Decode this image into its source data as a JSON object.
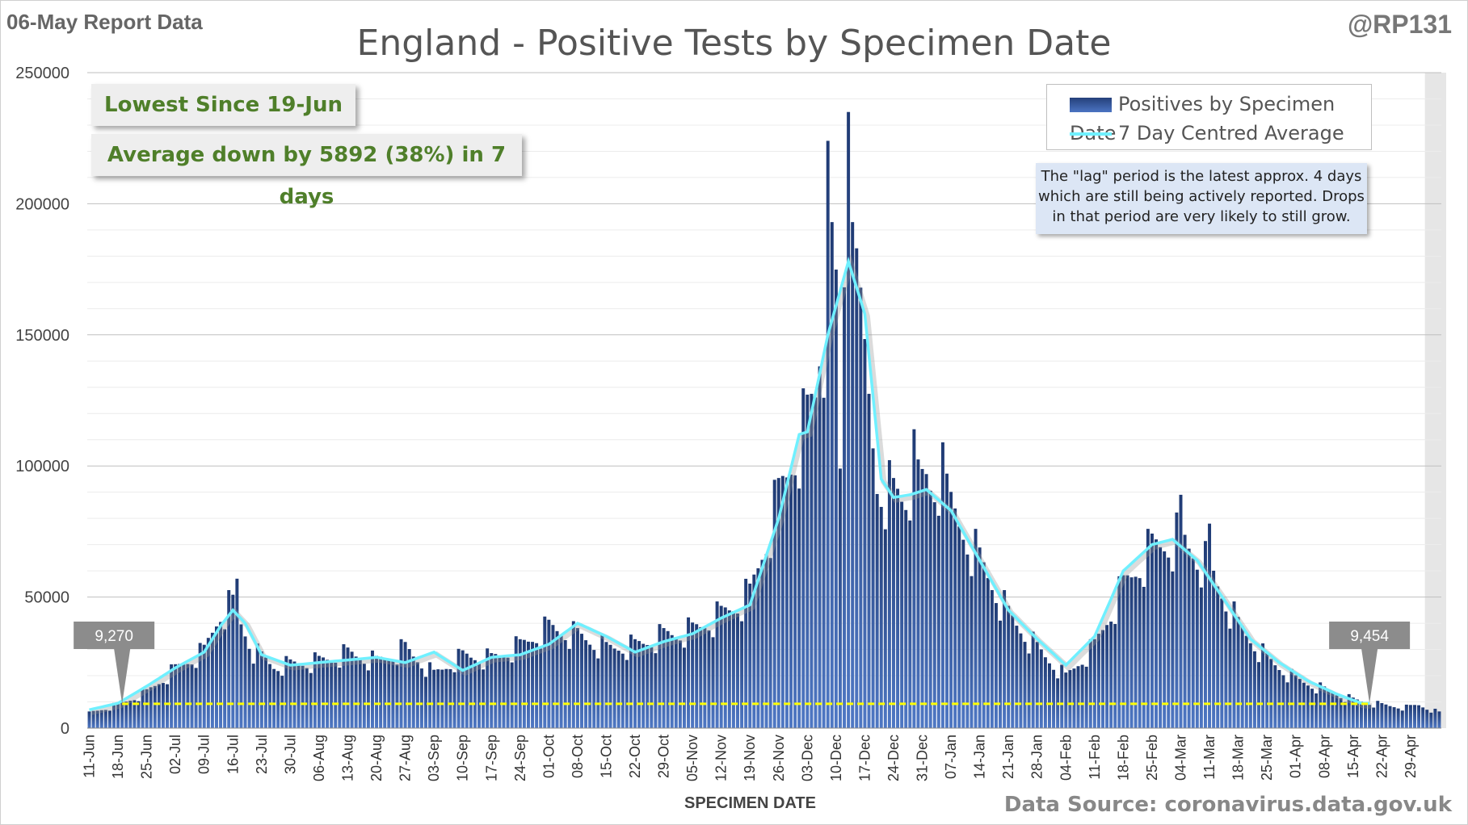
{
  "report_label": "06-May Report Data",
  "handle": "@RP131",
  "title": "England - Positive Tests by Specimen Date",
  "callouts": {
    "lowest": "Lowest Since 19-Jun",
    "average": "Average down by 5892 (38%) in 7 days"
  },
  "legend": {
    "bars": "Positives by Specimen Date",
    "line": "7 Day Centred Average"
  },
  "note": "The \"lag\" period is the latest approx. 4 days which are still being actively reported. Drops in that period are very likely to still grow.",
  "source": "Data Source: coronavirus.data.gov.uk",
  "colors": {
    "bar_dark": "#1f3a73",
    "bar_light": "#4f78c4",
    "average_line": "#6ff0ff",
    "reference_line": "#ffff00",
    "callout_text": "#4f7f2a"
  },
  "chart_data": {
    "type": "bar",
    "xlabel": "SPECIMEN DATE",
    "ylabel": "",
    "ylim": [
      0,
      250000
    ],
    "y_ticks": [
      0,
      50000,
      100000,
      150000,
      200000,
      250000
    ],
    "x_start": "11-Jun",
    "n_days": 330,
    "x_tick_labels": [
      "11-Jun",
      "18-Jun",
      "25-Jun",
      "02-Jul",
      "09-Jul",
      "16-Jul",
      "23-Jul",
      "30-Jul",
      "06-Aug",
      "13-Aug",
      "20-Aug",
      "27-Aug",
      "03-Sep",
      "10-Sep",
      "17-Sep",
      "24-Sep",
      "01-Oct",
      "08-Oct",
      "15-Oct",
      "22-Oct",
      "29-Oct",
      "05-Nov",
      "12-Nov",
      "19-Nov",
      "26-Nov",
      "03-Dec",
      "10-Dec",
      "17-Dec",
      "24-Dec",
      "31-Dec",
      "07-Jan",
      "14-Jan",
      "21-Jan",
      "28-Jan",
      "04-Feb",
      "11-Feb",
      "18-Feb",
      "25-Feb",
      "04-Mar",
      "11-Mar",
      "18-Mar",
      "25-Mar",
      "01-Apr",
      "08-Apr",
      "15-Apr",
      "22-Apr",
      "29-Apr"
    ],
    "grid": true,
    "legend_position": "top-right",
    "lag_days": 4,
    "series": [
      {
        "name": "Positives by Specimen Date",
        "type": "bar",
        "anchors": [
          [
            0,
            6000
          ],
          [
            7,
            9000
          ],
          [
            14,
            14000
          ],
          [
            21,
            23000
          ],
          [
            28,
            30000
          ],
          [
            32,
            45000
          ],
          [
            35,
            48000
          ],
          [
            40,
            30000
          ],
          [
            45,
            24000
          ],
          [
            56,
            26000
          ],
          [
            63,
            29000
          ],
          [
            70,
            26000
          ],
          [
            77,
            31000
          ],
          [
            84,
            21000
          ],
          [
            91,
            28000
          ],
          [
            98,
            27000
          ],
          [
            105,
            32000
          ],
          [
            112,
            39000
          ],
          [
            119,
            36000
          ],
          [
            126,
            31000
          ],
          [
            133,
            32000
          ],
          [
            140,
            36000
          ],
          [
            147,
            38000
          ],
          [
            154,
            44000
          ],
          [
            161,
            52000
          ],
          [
            168,
            90000
          ],
          [
            175,
            120000
          ],
          [
            180,
            145000
          ],
          [
            183,
            175000
          ],
          [
            186,
            170000
          ],
          [
            189,
            140000
          ],
          [
            192,
            95000
          ],
          [
            196,
            90000
          ],
          [
            200,
            88000
          ],
          [
            204,
            95000
          ],
          [
            210,
            85000
          ],
          [
            217,
            65000
          ],
          [
            224,
            44000
          ],
          [
            231,
            31000
          ],
          [
            238,
            20000
          ],
          [
            245,
            32000
          ],
          [
            252,
            55000
          ],
          [
            259,
            70000
          ],
          [
            266,
            74000
          ],
          [
            273,
            62000
          ],
          [
            280,
            40000
          ],
          [
            287,
            27000
          ],
          [
            294,
            19000
          ],
          [
            301,
            15000
          ],
          [
            308,
            11000
          ],
          [
            315,
            9000
          ],
          [
            321,
            8000
          ],
          [
            324,
            9000
          ],
          [
            329,
            6000
          ]
        ],
        "peaks": [
          [
            36,
            57000
          ],
          [
            178,
            138000
          ],
          [
            180,
            224000
          ],
          [
            181,
            193000
          ],
          [
            183,
            99000
          ],
          [
            185,
            235000
          ],
          [
            186,
            193000
          ],
          [
            187,
            183000
          ],
          [
            201,
            114000
          ],
          [
            208,
            109000
          ],
          [
            266,
            89000
          ],
          [
            273,
            78000
          ]
        ]
      },
      {
        "name": "7 Day Centred Average",
        "type": "line",
        "anchors": [
          [
            0,
            7000
          ],
          [
            7,
            9500
          ],
          [
            14,
            16000
          ],
          [
            21,
            23000
          ],
          [
            28,
            29000
          ],
          [
            32,
            39000
          ],
          [
            35,
            45000
          ],
          [
            38,
            40000
          ],
          [
            42,
            28000
          ],
          [
            49,
            24000
          ],
          [
            56,
            25000
          ],
          [
            63,
            26000
          ],
          [
            70,
            27000
          ],
          [
            77,
            25000
          ],
          [
            84,
            29000
          ],
          [
            91,
            22000
          ],
          [
            98,
            27000
          ],
          [
            105,
            28000
          ],
          [
            112,
            32000
          ],
          [
            119,
            40000
          ],
          [
            126,
            35000
          ],
          [
            133,
            29000
          ],
          [
            140,
            33000
          ],
          [
            147,
            36000
          ],
          [
            154,
            42000
          ],
          [
            161,
            47000
          ],
          [
            168,
            80000
          ],
          [
            173,
            112000
          ],
          [
            175,
            113000
          ],
          [
            180,
            150000
          ],
          [
            185,
            178000
          ],
          [
            189,
            158000
          ],
          [
            193,
            95000
          ],
          [
            196,
            88000
          ],
          [
            200,
            89000
          ],
          [
            204,
            91000
          ],
          [
            210,
            83000
          ],
          [
            217,
            64000
          ],
          [
            224,
            45000
          ],
          [
            231,
            34000
          ],
          [
            238,
            24000
          ],
          [
            245,
            35000
          ],
          [
            252,
            60000
          ],
          [
            259,
            70000
          ],
          [
            264,
            72000
          ],
          [
            270,
            64000
          ],
          [
            277,
            48000
          ],
          [
            283,
            34000
          ],
          [
            290,
            25000
          ],
          [
            297,
            18000
          ],
          [
            304,
            13000
          ],
          [
            310,
            9500
          ],
          [
            312,
            9454
          ]
        ]
      }
    ],
    "reference_line": {
      "value": 9270,
      "style": "dashed yellow"
    },
    "annotations": [
      {
        "label": "9,270",
        "x_day": 8,
        "y": 9270
      },
      {
        "label": "9,454",
        "x_day": 312,
        "y": 9454
      }
    ]
  }
}
